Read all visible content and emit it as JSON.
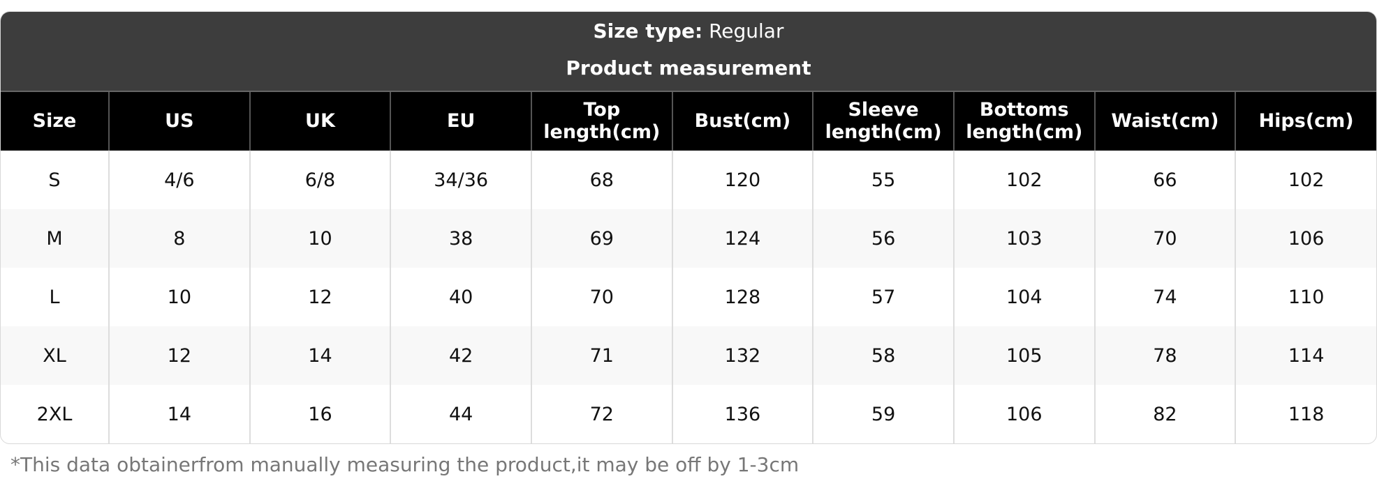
{
  "header": {
    "size_type_label": "Size type:",
    "size_type_value": "Regular",
    "subtitle": "Product measurement"
  },
  "table": {
    "columns": [
      "Size",
      "US",
      "UK",
      "EU",
      "Top\nlength(cm)",
      "Bust(cm)",
      "Sleeve\nlength(cm)",
      "Bottoms\nlength(cm)",
      "Waist(cm)",
      "Hips(cm)"
    ],
    "rows": [
      [
        "S",
        "4/6",
        "6/8",
        "34/36",
        "68",
        "120",
        "55",
        "102",
        "66",
        "102"
      ],
      [
        "M",
        "8",
        "10",
        "38",
        "69",
        "124",
        "56",
        "103",
        "70",
        "106"
      ],
      [
        "L",
        "10",
        "12",
        "40",
        "70",
        "128",
        "57",
        "104",
        "74",
        "110"
      ],
      [
        "XL",
        "12",
        "14",
        "42",
        "71",
        "132",
        "58",
        "105",
        "78",
        "114"
      ],
      [
        "2XL",
        "14",
        "16",
        "44",
        "72",
        "136",
        "59",
        "106",
        "82",
        "118"
      ]
    ]
  },
  "footnote": "*This data obtainerfrom manually measuring the product,it may be off by 1-3cm"
}
